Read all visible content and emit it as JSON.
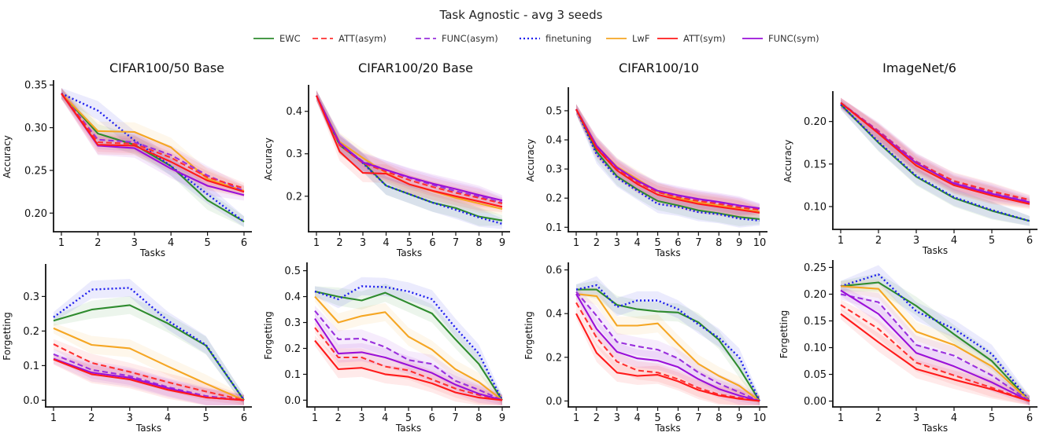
{
  "suptitle": "Task Agnostic - avg 3 seeds",
  "legend": [
    {
      "name": "EWC",
      "color": "#2e8b2e",
      "dash": ""
    },
    {
      "name": "ATT(asym)",
      "color": "#ff3030",
      "dash": "7,4"
    },
    {
      "name": "FUNC(asym)",
      "color": "#9a30dd",
      "dash": "7,4"
    },
    {
      "name": "finetuning",
      "color": "#1e1eee",
      "dash": "2,3"
    },
    {
      "name": "LwF",
      "color": "#f5a623",
      "dash": ""
    },
    {
      "name": "ATT(sym)",
      "color": "#ff1a1a",
      "dash": ""
    },
    {
      "name": "FUNC(sym)",
      "color": "#9a10d8",
      "dash": ""
    }
  ],
  "column_titles": [
    "CIFAR100/50 Base",
    "CIFAR100/20 Base",
    "CIFAR100/10",
    "ImageNet/6"
  ],
  "chart_data": [
    {
      "type": "line",
      "title": "CIFAR100/50 Base",
      "xlabel": "Tasks",
      "ylabel": "Accuracy",
      "x": [
        1,
        2,
        3,
        4,
        5,
        6
      ],
      "xticks": [
        "1",
        "2",
        "3",
        "4",
        "5",
        "6"
      ],
      "ylim": [
        0.18,
        0.352
      ],
      "yticks": [
        0.2,
        0.25,
        0.3,
        0.35
      ],
      "ytick_labels": [
        "0.20",
        "0.25",
        "0.30",
        "0.35"
      ],
      "series": [
        {
          "name": "EWC",
          "values": [
            0.34,
            0.293,
            0.28,
            0.255,
            0.215,
            0.19
          ]
        },
        {
          "name": "ATT(asym)",
          "values": [
            0.34,
            0.283,
            0.281,
            0.265,
            0.242,
            0.229
          ]
        },
        {
          "name": "FUNC(asym)",
          "values": [
            0.34,
            0.286,
            0.283,
            0.268,
            0.244,
            0.226
          ]
        },
        {
          "name": "finetuning",
          "values": [
            0.34,
            0.32,
            0.285,
            0.255,
            0.222,
            0.19
          ]
        },
        {
          "name": "LwF",
          "values": [
            0.34,
            0.296,
            0.295,
            0.277,
            0.24,
            0.226
          ]
        },
        {
          "name": "ATT(sym)",
          "values": [
            0.34,
            0.28,
            0.279,
            0.26,
            0.238,
            0.225
          ]
        },
        {
          "name": "FUNC(sym)",
          "values": [
            0.34,
            0.279,
            0.276,
            0.252,
            0.232,
            0.221
          ]
        }
      ]
    },
    {
      "type": "line",
      "title": "CIFAR100/20 Base",
      "xlabel": "Tasks",
      "ylabel": "Accuracy",
      "x": [
        1,
        2,
        3,
        4,
        5,
        6,
        7,
        8,
        9
      ],
      "xticks": [
        "1",
        "2",
        "3",
        "4",
        "5",
        "6",
        "7",
        "8",
        "9"
      ],
      "ylim": [
        0.12,
        0.455
      ],
      "yticks": [
        0.2,
        0.3,
        0.4
      ],
      "ytick_labels": [
        "0.2",
        "0.3",
        "0.4"
      ],
      "series": [
        {
          "name": "EWC",
          "values": [
            0.437,
            0.32,
            0.28,
            0.225,
            0.205,
            0.185,
            0.172,
            0.152,
            0.143
          ]
        },
        {
          "name": "ATT(asym)",
          "values": [
            0.437,
            0.32,
            0.278,
            0.258,
            0.238,
            0.222,
            0.208,
            0.196,
            0.183
          ]
        },
        {
          "name": "FUNC(asym)",
          "values": [
            0.437,
            0.322,
            0.282,
            0.262,
            0.243,
            0.227,
            0.212,
            0.199,
            0.185
          ]
        },
        {
          "name": "finetuning",
          "values": [
            0.437,
            0.325,
            0.278,
            0.225,
            0.205,
            0.185,
            0.168,
            0.15,
            0.135
          ]
        },
        {
          "name": "LwF",
          "values": [
            0.437,
            0.328,
            0.29,
            0.255,
            0.228,
            0.212,
            0.196,
            0.183,
            0.17
          ]
        },
        {
          "name": "ATT(sym)",
          "values": [
            0.437,
            0.305,
            0.255,
            0.253,
            0.228,
            0.213,
            0.2,
            0.188,
            0.175
          ]
        },
        {
          "name": "FUNC(sym)",
          "values": [
            0.437,
            0.325,
            0.28,
            0.262,
            0.245,
            0.23,
            0.217,
            0.203,
            0.19
          ]
        }
      ]
    },
    {
      "type": "line",
      "title": "CIFAR100/10",
      "xlabel": "Tasks",
      "ylabel": "Accuracy",
      "x": [
        1,
        2,
        3,
        4,
        5,
        6,
        7,
        8,
        9,
        10
      ],
      "xticks": [
        "1",
        "2",
        "3",
        "4",
        "5",
        "6",
        "7",
        "8",
        "9",
        "10"
      ],
      "ylim": [
        0.09,
        0.57
      ],
      "yticks": [
        0.1,
        0.2,
        0.3,
        0.4,
        0.5
      ],
      "ytick_labels": [
        "0.1",
        "0.2",
        "0.3",
        "0.4",
        "0.5"
      ],
      "series": [
        {
          "name": "EWC",
          "values": [
            0.505,
            0.36,
            0.275,
            0.23,
            0.19,
            0.175,
            0.158,
            0.148,
            0.135,
            0.128
          ]
        },
        {
          "name": "ATT(asym)",
          "values": [
            0.505,
            0.375,
            0.3,
            0.255,
            0.22,
            0.203,
            0.19,
            0.18,
            0.168,
            0.16
          ]
        },
        {
          "name": "FUNC(asym)",
          "values": [
            0.505,
            0.378,
            0.305,
            0.258,
            0.223,
            0.206,
            0.193,
            0.183,
            0.171,
            0.163
          ]
        },
        {
          "name": "finetuning",
          "values": [
            0.505,
            0.35,
            0.27,
            0.225,
            0.18,
            0.17,
            0.152,
            0.145,
            0.13,
            0.123
          ]
        },
        {
          "name": "LwF",
          "values": [
            0.505,
            0.38,
            0.308,
            0.265,
            0.222,
            0.2,
            0.185,
            0.175,
            0.163,
            0.153
          ]
        },
        {
          "name": "ATT(sym)",
          "values": [
            0.505,
            0.37,
            0.295,
            0.248,
            0.212,
            0.195,
            0.18,
            0.17,
            0.16,
            0.15
          ]
        },
        {
          "name": "FUNC(sym)",
          "values": [
            0.505,
            0.38,
            0.305,
            0.26,
            0.225,
            0.21,
            0.197,
            0.187,
            0.175,
            0.165
          ]
        }
      ]
    },
    {
      "type": "line",
      "title": "ImageNet/6",
      "xlabel": "Tasks",
      "ylabel": "Accuracy",
      "x": [
        1,
        2,
        3,
        4,
        5,
        6
      ],
      "xticks": [
        "1",
        "2",
        "3",
        "4",
        "5",
        "6"
      ],
      "ylim": [
        0.075,
        0.232
      ],
      "yticks": [
        0.1,
        0.15,
        0.2
      ],
      "ytick_labels": [
        "0.10",
        "0.15",
        "0.20"
      ],
      "series": [
        {
          "name": "EWC",
          "values": [
            0.22,
            0.175,
            0.135,
            0.11,
            0.095,
            0.083
          ]
        },
        {
          "name": "ATT(asym)",
          "values": [
            0.222,
            0.188,
            0.152,
            0.13,
            0.118,
            0.108
          ]
        },
        {
          "name": "FUNC(asym)",
          "values": [
            0.222,
            0.189,
            0.153,
            0.129,
            0.117,
            0.107
          ]
        },
        {
          "name": "finetuning",
          "values": [
            0.22,
            0.176,
            0.136,
            0.111,
            0.096,
            0.083
          ]
        },
        {
          "name": "LwF",
          "values": [
            0.222,
            0.187,
            0.15,
            0.126,
            0.114,
            0.104
          ]
        },
        {
          "name": "ATT(sym)",
          "values": [
            0.222,
            0.186,
            0.148,
            0.125,
            0.113,
            0.103
          ]
        },
        {
          "name": "FUNC(sym)",
          "values": [
            0.222,
            0.187,
            0.151,
            0.127,
            0.115,
            0.105
          ]
        }
      ]
    },
    {
      "type": "line",
      "title": "",
      "xlabel": "Tasks",
      "ylabel": "Forgetting",
      "x": [
        1,
        2,
        3,
        4,
        5,
        6
      ],
      "xticks": [
        "1",
        "2",
        "3",
        "4",
        "5",
        "6"
      ],
      "ylim": [
        -0.015,
        0.385
      ],
      "yticks": [
        0.0,
        0.1,
        0.2,
        0.3
      ],
      "ytick_labels": [
        "0.0",
        "0.1",
        "0.2",
        "0.3"
      ],
      "series": [
        {
          "name": "EWC",
          "values": [
            0.23,
            0.262,
            0.275,
            0.222,
            0.158,
            0.0
          ]
        },
        {
          "name": "ATT(asym)",
          "values": [
            0.162,
            0.108,
            0.082,
            0.052,
            0.025,
            0.0
          ]
        },
        {
          "name": "FUNC(asym)",
          "values": [
            0.133,
            0.088,
            0.07,
            0.038,
            0.012,
            0.0
          ]
        },
        {
          "name": "finetuning",
          "values": [
            0.24,
            0.32,
            0.325,
            0.23,
            0.16,
            0.0
          ]
        },
        {
          "name": "LwF",
          "values": [
            0.208,
            0.16,
            0.15,
            0.098,
            0.048,
            0.0
          ]
        },
        {
          "name": "ATT(sym)",
          "values": [
            0.118,
            0.075,
            0.06,
            0.03,
            0.008,
            0.0
          ]
        },
        {
          "name": "FUNC(sym)",
          "values": [
            0.12,
            0.08,
            0.065,
            0.035,
            0.008,
            0.0
          ]
        }
      ]
    },
    {
      "type": "line",
      "title": "",
      "xlabel": "Tasks",
      "ylabel": "Forgetting",
      "x": [
        1,
        2,
        3,
        4,
        5,
        6,
        7,
        8,
        9
      ],
      "xticks": [
        "1",
        "2",
        "3",
        "4",
        "5",
        "6",
        "7",
        "8",
        "9"
      ],
      "ylim": [
        -0.02,
        0.52
      ],
      "yticks": [
        0.0,
        0.1,
        0.2,
        0.3,
        0.4,
        0.5
      ],
      "ytick_labels": [
        "0.0",
        "0.1",
        "0.2",
        "0.3",
        "0.4",
        "0.5"
      ],
      "series": [
        {
          "name": "EWC",
          "values": [
            0.42,
            0.4,
            0.385,
            0.415,
            0.375,
            0.335,
            0.235,
            0.14,
            0.0
          ]
        },
        {
          "name": "ATT(asym)",
          "values": [
            0.28,
            0.165,
            0.165,
            0.13,
            0.115,
            0.08,
            0.045,
            0.02,
            0.0
          ]
        },
        {
          "name": "FUNC(asym)",
          "values": [
            0.345,
            0.235,
            0.238,
            0.205,
            0.155,
            0.14,
            0.075,
            0.04,
            0.0
          ]
        },
        {
          "name": "finetuning",
          "values": [
            0.42,
            0.39,
            0.44,
            0.437,
            0.42,
            0.39,
            0.28,
            0.18,
            0.0
          ]
        },
        {
          "name": "LwF",
          "values": [
            0.4,
            0.3,
            0.325,
            0.34,
            0.245,
            0.195,
            0.12,
            0.07,
            0.0
          ]
        },
        {
          "name": "ATT(sym)",
          "values": [
            0.23,
            0.12,
            0.125,
            0.1,
            0.09,
            0.065,
            0.03,
            0.01,
            0.0
          ]
        },
        {
          "name": "FUNC(sym)",
          "values": [
            0.315,
            0.18,
            0.185,
            0.165,
            0.135,
            0.105,
            0.06,
            0.025,
            0.0
          ]
        }
      ]
    },
    {
      "type": "line",
      "title": "",
      "xlabel": "Tasks",
      "ylabel": "Forgetting",
      "x": [
        1,
        2,
        3,
        4,
        5,
        6,
        7,
        8,
        9,
        10
      ],
      "xticks": [
        "1",
        "2",
        "3",
        "4",
        "5",
        "6",
        "7",
        "8",
        "9",
        "10"
      ],
      "ylim": [
        -0.02,
        0.62
      ],
      "yticks": [
        0.0,
        0.2,
        0.4,
        0.6
      ],
      "ytick_labels": [
        "0.0",
        "0.2",
        "0.4",
        "0.6"
      ],
      "series": [
        {
          "name": "EWC",
          "values": [
            0.51,
            0.51,
            0.44,
            0.42,
            0.41,
            0.405,
            0.36,
            0.28,
            0.15,
            0.0
          ]
        },
        {
          "name": "ATT(asym)",
          "values": [
            0.45,
            0.29,
            0.18,
            0.14,
            0.13,
            0.1,
            0.06,
            0.03,
            0.015,
            0.0
          ]
        },
        {
          "name": "FUNC(asym)",
          "values": [
            0.5,
            0.39,
            0.27,
            0.25,
            0.235,
            0.195,
            0.13,
            0.08,
            0.04,
            0.0
          ]
        },
        {
          "name": "finetuning",
          "values": [
            0.51,
            0.53,
            0.43,
            0.46,
            0.46,
            0.42,
            0.35,
            0.29,
            0.2,
            0.0
          ]
        },
        {
          "name": "LwF",
          "values": [
            0.49,
            0.48,
            0.345,
            0.345,
            0.355,
            0.26,
            0.17,
            0.115,
            0.07,
            0.0
          ]
        },
        {
          "name": "ATT(sym)",
          "values": [
            0.4,
            0.22,
            0.13,
            0.115,
            0.12,
            0.09,
            0.05,
            0.025,
            0.01,
            0.0
          ]
        },
        {
          "name": "FUNC(sym)",
          "values": [
            0.49,
            0.33,
            0.225,
            0.195,
            0.185,
            0.155,
            0.1,
            0.055,
            0.025,
            0.0
          ]
        }
      ]
    },
    {
      "type": "line",
      "title": "",
      "xlabel": "Tasks",
      "ylabel": "Forgetting",
      "x": [
        1,
        2,
        3,
        4,
        5,
        6
      ],
      "xticks": [
        "1",
        "2",
        "3",
        "4",
        "5",
        "6"
      ],
      "ylim": [
        -0.008,
        0.258
      ],
      "yticks": [
        0.0,
        0.05,
        0.1,
        0.15,
        0.2,
        0.25
      ],
      "ytick_labels": [
        "0.00",
        "0.05",
        "0.10",
        "0.15",
        "0.20",
        "0.25"
      ],
      "series": [
        {
          "name": "EWC",
          "values": [
            0.215,
            0.222,
            0.178,
            0.125,
            0.075,
            0.0
          ]
        },
        {
          "name": "ATT(asym)",
          "values": [
            0.18,
            0.135,
            0.072,
            0.048,
            0.025,
            0.0
          ]
        },
        {
          "name": "FUNC(asym)",
          "values": [
            0.2,
            0.185,
            0.105,
            0.085,
            0.048,
            0.0
          ]
        },
        {
          "name": "finetuning",
          "values": [
            0.215,
            0.237,
            0.168,
            0.135,
            0.088,
            0.0
          ]
        },
        {
          "name": "LwF",
          "values": [
            0.215,
            0.21,
            0.13,
            0.105,
            0.065,
            0.0
          ]
        },
        {
          "name": "ATT(sym)",
          "values": [
            0.163,
            0.11,
            0.06,
            0.04,
            0.022,
            0.0
          ]
        },
        {
          "name": "FUNC(sym)",
          "values": [
            0.207,
            0.163,
            0.09,
            0.065,
            0.035,
            0.0
          ]
        }
      ]
    }
  ]
}
